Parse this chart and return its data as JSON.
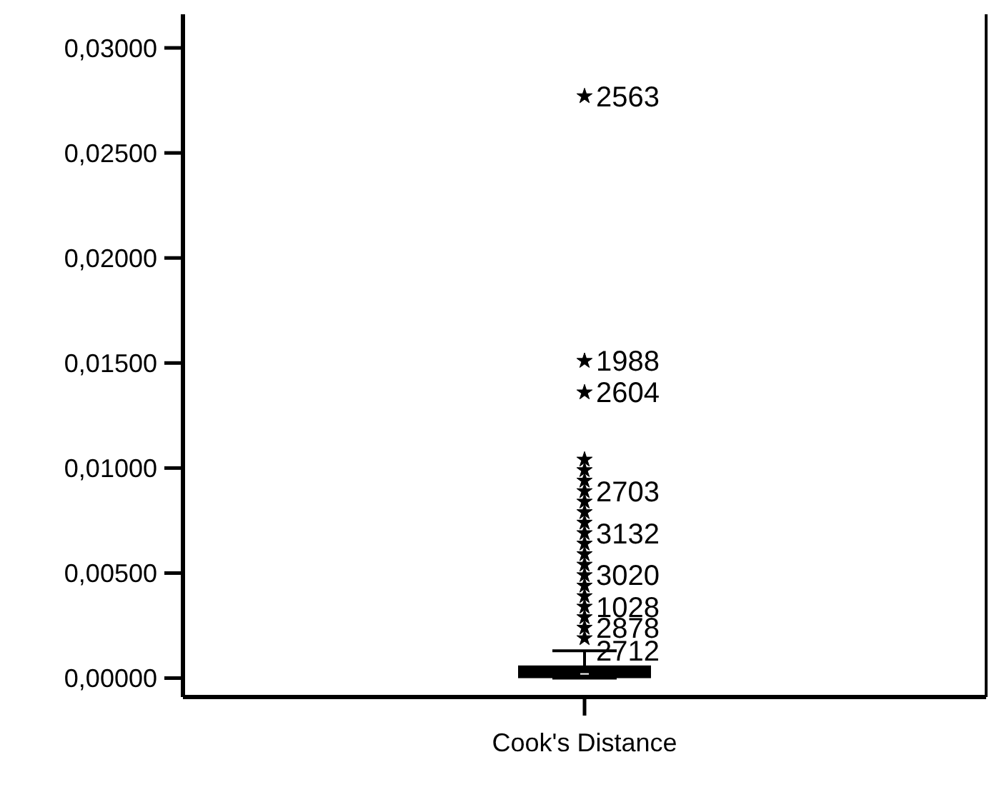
{
  "chart_data": {
    "type": "box",
    "categories": [
      "Cook's Distance"
    ],
    "ylim": [
      -0.0009,
      0.0316
    ],
    "yticks": [
      {
        "value": 0,
        "label": "0,00000"
      },
      {
        "value": 0.005,
        "label": "0,00500"
      },
      {
        "value": 0.01,
        "label": "0,01000"
      },
      {
        "value": 0.015,
        "label": "0,01500"
      },
      {
        "value": 0.02,
        "label": "0,02000"
      },
      {
        "value": 0.025,
        "label": "0,02500"
      },
      {
        "value": 0.03,
        "label": "0,03000"
      }
    ],
    "boxes": [
      {
        "low": 0,
        "q1": 0.0001,
        "median": 0.0002,
        "q3": 0.0005,
        "high": 0.0013
      }
    ],
    "series": [
      {
        "type": "scatter",
        "color": "#000000",
        "marker": "star",
        "x": [
          "Cook's Distance",
          "Cook's Distance",
          "Cook's Distance",
          "Cook's Distance",
          "Cook's Distance",
          "Cook's Distance",
          "Cook's Distance",
          "Cook's Distance",
          "Cook's Distance",
          "Cook's Distance",
          "Cook's Distance",
          "Cook's Distance",
          "Cook's Distance",
          "Cook's Distance",
          "Cook's Distance",
          "Cook's Distance",
          "Cook's Distance",
          "Cook's Distance",
          "Cook's Distance",
          "Cook's Distance",
          "Cook's Distance"
        ],
        "values": [
          0.0019,
          0.0024,
          0.0029,
          0.0034,
          0.0039,
          0.0044,
          0.0049,
          0.0054,
          0.0059,
          0.0064,
          0.0069,
          0.0074,
          0.0079,
          0.0084,
          0.0089,
          0.0094,
          0.0099,
          0.0104,
          0.0136,
          0.0151,
          0.0277
        ]
      }
    ],
    "grid": false,
    "annotations": [
      {
        "text": "2563",
        "x": "Cook's Distance",
        "y": 0.0277
      },
      {
        "text": "1988",
        "x": "Cook's Distance",
        "y": 0.0151
      },
      {
        "text": "2604",
        "x": "Cook's Distance",
        "y": 0.0136
      },
      {
        "text": "2703",
        "x": "Cook's Distance",
        "y": 0.0089
      },
      {
        "text": "3132",
        "x": "Cook's Distance",
        "y": 0.0069
      },
      {
        "text": "3020",
        "x": "Cook's Distance",
        "y": 0.0049
      },
      {
        "text": "1028",
        "x": "Cook's Distance",
        "y": 0.0034
      },
      {
        "text": "2878",
        "x": "Cook's Distance",
        "y": 0.0024
      },
      {
        "text": "2712",
        "x": "Cook's Distance",
        "y": 0.0013
      }
    ]
  }
}
